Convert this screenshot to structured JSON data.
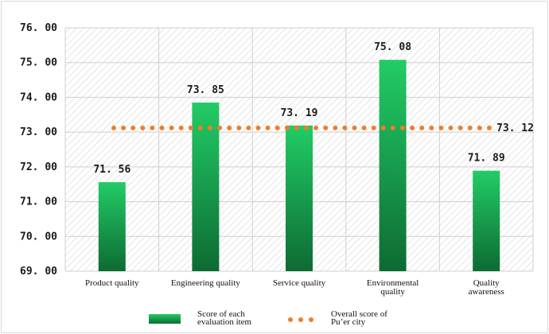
{
  "chart_data": {
    "type": "bar",
    "categories": [
      [
        "Product quality"
      ],
      [
        "Engineering quality"
      ],
      [
        "Service quality"
      ],
      [
        "Environmental",
        "quality"
      ],
      [
        "Quality",
        "awareness"
      ]
    ],
    "series": [
      {
        "name": "Score of each evaluation item",
        "legend_lines": [
          "Score of each",
          "evaluation item"
        ],
        "type": "bar",
        "values": [
          71.56,
          73.85,
          73.19,
          75.08,
          71.89
        ],
        "labels": [
          "71. 56",
          "73. 85",
          "73. 19",
          "75. 08",
          "71. 89"
        ]
      },
      {
        "name": "Overall score of Pu’er city",
        "legend_lines": [
          "Overall score of",
          "Pu’er city"
        ],
        "type": "dotted-line",
        "values": [
          73.12,
          73.12,
          73.12,
          73.12,
          73.12
        ],
        "label": "73. 12"
      }
    ],
    "yticks": [
      "69. 00",
      "70. 00",
      "71. 00",
      "72. 00",
      "73. 00",
      "74. 00",
      "75. 00",
      "76. 00"
    ],
    "ylim": [
      69,
      76
    ],
    "grid": true,
    "legend_position": "bottom",
    "colors": {
      "bar_top": "#22cc66",
      "bar_bottom": "#0d6b33",
      "line": "#f07d2a",
      "grid": "#cfcfcf",
      "hatch": "#e4e4e4"
    }
  }
}
